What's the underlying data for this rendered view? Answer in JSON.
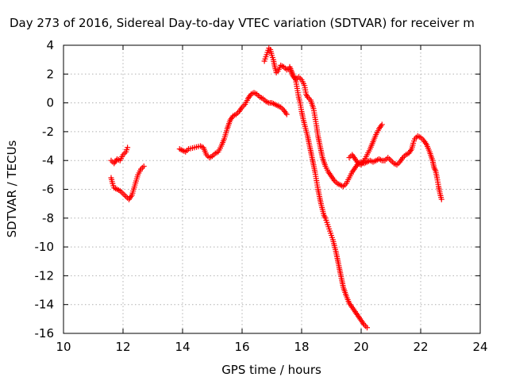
{
  "chart_data": {
    "type": "scatter",
    "title": "Day 273 of 2016, Sidereal Day-to-day VTEC variation (SDTVAR) for receiver m",
    "xlabel": "GPS time / hours",
    "ylabel": "SDTVAR / TECUs",
    "xlim": [
      10,
      24
    ],
    "ylim": [
      -16,
      4
    ],
    "x_ticks": [
      "10",
      "12",
      "14",
      "16",
      "18",
      "20",
      "22",
      "24"
    ],
    "y_ticks": [
      "4",
      "2",
      "0",
      "-2",
      "-4",
      "-6",
      "-8",
      "-10",
      "-12",
      "-14",
      "-16"
    ],
    "grid": true,
    "marker": "plus",
    "color": "#ff0000",
    "series": [
      {
        "points": [
          [
            11.6,
            -4.0
          ],
          [
            11.7,
            -4.2
          ],
          [
            11.8,
            -3.9
          ],
          [
            11.9,
            -4.0
          ],
          [
            12.0,
            -3.6
          ],
          [
            12.1,
            -3.4
          ],
          [
            12.15,
            -3.1
          ]
        ]
      },
      {
        "points": [
          [
            11.6,
            -5.2
          ],
          [
            11.65,
            -5.6
          ],
          [
            11.7,
            -5.9
          ],
          [
            11.8,
            -6.0
          ],
          [
            11.9,
            -6.1
          ],
          [
            12.0,
            -6.3
          ],
          [
            12.1,
            -6.5
          ],
          [
            12.2,
            -6.7
          ],
          [
            12.3,
            -6.4
          ],
          [
            12.4,
            -5.7
          ],
          [
            12.5,
            -5.0
          ],
          [
            12.6,
            -4.6
          ],
          [
            12.7,
            -4.4
          ]
        ]
      },
      {
        "points": [
          [
            13.9,
            -3.2
          ],
          [
            14.0,
            -3.3
          ],
          [
            14.1,
            -3.4
          ],
          [
            14.2,
            -3.2
          ],
          [
            14.4,
            -3.1
          ],
          [
            14.6,
            -3.0
          ],
          [
            14.7,
            -3.1
          ],
          [
            14.8,
            -3.6
          ],
          [
            14.9,
            -3.8
          ],
          [
            15.0,
            -3.7
          ],
          [
            15.1,
            -3.5
          ],
          [
            15.2,
            -3.4
          ],
          [
            15.3,
            -3.0
          ],
          [
            15.4,
            -2.5
          ],
          [
            15.5,
            -1.8
          ],
          [
            15.6,
            -1.2
          ],
          [
            15.7,
            -0.9
          ],
          [
            15.8,
            -0.8
          ],
          [
            15.9,
            -0.6
          ],
          [
            16.0,
            -0.3
          ],
          [
            16.1,
            -0.1
          ],
          [
            16.2,
            0.3
          ],
          [
            16.3,
            0.6
          ],
          [
            16.4,
            0.7
          ],
          [
            16.5,
            0.6
          ],
          [
            16.6,
            0.4
          ],
          [
            16.7,
            0.3
          ],
          [
            16.8,
            0.1
          ],
          [
            16.9,
            0.0
          ],
          [
            17.0,
            0.0
          ],
          [
            17.1,
            -0.1
          ],
          [
            17.2,
            -0.2
          ],
          [
            17.3,
            -0.3
          ],
          [
            17.4,
            -0.5
          ],
          [
            17.5,
            -0.8
          ]
        ]
      },
      {
        "points": [
          [
            16.75,
            2.9
          ],
          [
            16.8,
            3.2
          ],
          [
            16.85,
            3.5
          ],
          [
            16.9,
            3.8
          ],
          [
            16.95,
            3.7
          ],
          [
            17.0,
            3.3
          ],
          [
            17.05,
            3.0
          ],
          [
            17.1,
            2.5
          ],
          [
            17.15,
            2.1
          ],
          [
            17.2,
            2.2
          ],
          [
            17.3,
            2.6
          ],
          [
            17.4,
            2.5
          ],
          [
            17.5,
            2.3
          ],
          [
            17.6,
            2.4
          ],
          [
            17.7,
            1.9
          ],
          [
            17.8,
            1.6
          ],
          [
            17.9,
            1.8
          ],
          [
            18.0,
            1.6
          ],
          [
            18.1,
            1.2
          ],
          [
            18.15,
            0.6
          ],
          [
            18.2,
            0.4
          ],
          [
            18.3,
            0.2
          ],
          [
            18.4,
            -0.4
          ],
          [
            18.45,
            -1.0
          ],
          [
            18.5,
            -1.6
          ],
          [
            18.55,
            -2.3
          ],
          [
            18.6,
            -2.8
          ],
          [
            18.65,
            -3.3
          ],
          [
            18.7,
            -3.8
          ],
          [
            18.8,
            -4.4
          ],
          [
            18.9,
            -4.8
          ],
          [
            19.0,
            -5.1
          ],
          [
            19.1,
            -5.4
          ],
          [
            19.2,
            -5.6
          ],
          [
            19.3,
            -5.7
          ],
          [
            19.4,
            -5.8
          ],
          [
            19.5,
            -5.6
          ],
          [
            19.6,
            -5.2
          ],
          [
            19.7,
            -4.8
          ],
          [
            19.8,
            -4.5
          ],
          [
            19.9,
            -4.2
          ],
          [
            20.0,
            -4.1
          ],
          [
            20.1,
            -4.2
          ],
          [
            20.2,
            -4.1
          ],
          [
            20.3,
            -4.0
          ],
          [
            20.4,
            -4.1
          ],
          [
            20.5,
            -4.0
          ],
          [
            20.6,
            -3.9
          ],
          [
            20.7,
            -4.0
          ],
          [
            20.8,
            -4.0
          ],
          [
            20.9,
            -3.8
          ],
          [
            21.0,
            -4.0
          ],
          [
            21.1,
            -4.2
          ],
          [
            21.2,
            -4.3
          ],
          [
            21.3,
            -4.1
          ],
          [
            21.4,
            -3.8
          ],
          [
            21.5,
            -3.6
          ],
          [
            21.6,
            -3.5
          ],
          [
            21.7,
            -3.2
          ],
          [
            21.75,
            -2.8
          ],
          [
            21.8,
            -2.5
          ],
          [
            21.9,
            -2.3
          ],
          [
            22.0,
            -2.4
          ],
          [
            22.1,
            -2.6
          ],
          [
            22.2,
            -2.9
          ],
          [
            22.3,
            -3.4
          ],
          [
            22.4,
            -4.0
          ],
          [
            22.45,
            -4.5
          ],
          [
            22.5,
            -4.7
          ],
          [
            22.55,
            -5.2
          ],
          [
            22.6,
            -5.8
          ],
          [
            22.65,
            -6.3
          ],
          [
            22.7,
            -6.7
          ]
        ]
      },
      {
        "points": [
          [
            17.6,
            2.5
          ],
          [
            17.7,
            2.0
          ],
          [
            17.8,
            1.6
          ],
          [
            17.85,
            1.0
          ],
          [
            17.9,
            0.4
          ],
          [
            17.95,
            0.0
          ],
          [
            18.0,
            -0.6
          ],
          [
            18.05,
            -1.1
          ],
          [
            18.1,
            -1.5
          ],
          [
            18.15,
            -1.9
          ],
          [
            18.2,
            -2.3
          ],
          [
            18.25,
            -2.8
          ],
          [
            18.3,
            -3.3
          ],
          [
            18.35,
            -3.8
          ],
          [
            18.4,
            -4.3
          ],
          [
            18.45,
            -4.8
          ],
          [
            18.5,
            -5.4
          ],
          [
            18.55,
            -6.0
          ],
          [
            18.6,
            -6.5
          ],
          [
            18.65,
            -7.0
          ],
          [
            18.7,
            -7.4
          ],
          [
            18.75,
            -7.8
          ],
          [
            18.8,
            -8.0
          ],
          [
            18.85,
            -8.3
          ],
          [
            18.9,
            -8.6
          ],
          [
            18.95,
            -8.9
          ],
          [
            19.0,
            -9.2
          ],
          [
            19.05,
            -9.5
          ],
          [
            19.1,
            -9.9
          ],
          [
            19.15,
            -10.3
          ],
          [
            19.2,
            -10.8
          ],
          [
            19.25,
            -11.3
          ],
          [
            19.3,
            -11.8
          ],
          [
            19.35,
            -12.3
          ],
          [
            19.4,
            -12.8
          ],
          [
            19.5,
            -13.4
          ],
          [
            19.6,
            -13.9
          ],
          [
            19.7,
            -14.2
          ],
          [
            19.8,
            -14.5
          ],
          [
            19.9,
            -14.8
          ],
          [
            20.0,
            -15.1
          ],
          [
            20.1,
            -15.4
          ],
          [
            20.2,
            -15.6
          ]
        ]
      },
      {
        "points": [
          [
            19.6,
            -3.8
          ],
          [
            19.7,
            -3.6
          ],
          [
            19.8,
            -3.9
          ],
          [
            19.9,
            -4.2
          ],
          [
            20.0,
            -4.3
          ],
          [
            20.1,
            -4.0
          ],
          [
            20.2,
            -3.6
          ],
          [
            20.3,
            -3.2
          ],
          [
            20.4,
            -2.7
          ],
          [
            20.5,
            -2.2
          ],
          [
            20.6,
            -1.8
          ],
          [
            20.7,
            -1.5
          ]
        ]
      }
    ]
  }
}
